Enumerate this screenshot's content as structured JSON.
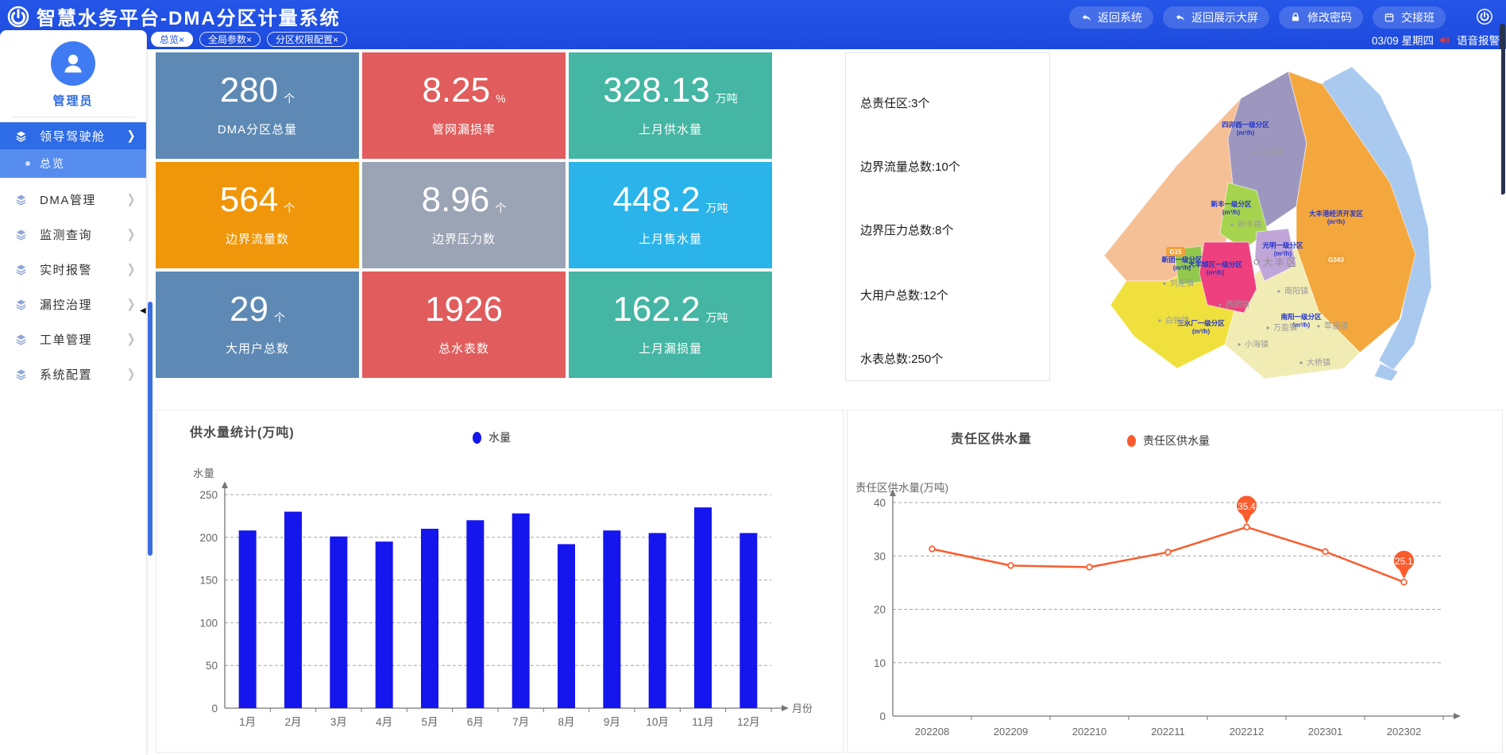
{
  "header": {
    "title": "智慧水务平台-DMA分区计量系统",
    "actions": [
      {
        "label": "返回系统",
        "icon": "back-arrow"
      },
      {
        "label": "返回展示大屏",
        "icon": "back-arrow"
      },
      {
        "label": "修改密码",
        "icon": "lock"
      },
      {
        "label": "交接班",
        "icon": "calendar"
      }
    ],
    "tabs": [
      {
        "label": "总览",
        "close": "×",
        "active": true
      },
      {
        "label": "全局参数",
        "close": "×",
        "active": false
      },
      {
        "label": "分区权限配置",
        "close": "×",
        "active": false
      }
    ],
    "date_text": "03/09 星期四",
    "voice_alarm": "语音报警"
  },
  "sidebar": {
    "user_name": "管理员",
    "menu": [
      {
        "label": "领导驾驶舱",
        "icon": "layers",
        "active": true,
        "expanded": true,
        "children": [
          {
            "label": "总览",
            "active": true
          }
        ]
      },
      {
        "label": "DMA管理",
        "icon": "layers"
      },
      {
        "label": "监测查询",
        "icon": "layers"
      },
      {
        "label": "实时报警",
        "icon": "layers"
      },
      {
        "label": "漏控治理",
        "icon": "layers"
      },
      {
        "label": "工单管理",
        "icon": "layers"
      },
      {
        "label": "系统配置",
        "icon": "layers"
      }
    ]
  },
  "stat_cards": [
    {
      "value": "280",
      "unit": "个",
      "label": "DMA分区总量",
      "color": "#5d89b4"
    },
    {
      "value": "8.25",
      "unit": "%",
      "label": "管网漏损率",
      "color": "#e15c5c"
    },
    {
      "value": "328.13",
      "unit": "万吨",
      "label": "上月供水量",
      "color": "#44b6a3"
    },
    {
      "value": "564",
      "unit": "个",
      "label": "边界流量数",
      "color": "#f0960a"
    },
    {
      "value": "8.96",
      "unit": "个",
      "label": "边界压力数",
      "color": "#9ba4b4"
    },
    {
      "value": "448.2",
      "unit": "万吨",
      "label": "上月售水量",
      "color": "#2ab4e9"
    },
    {
      "value": "29",
      "unit": "个",
      "label": "大用户总数",
      "color": "#5d89b4"
    },
    {
      "value": "1926",
      "unit": "",
      "label": "总水表数",
      "color": "#e15c5c"
    },
    {
      "value": "162.2",
      "unit": "万吨",
      "label": "上月漏损量",
      "color": "#44b6a3"
    }
  ],
  "summary_panel": {
    "items": [
      "总责任区:3个",
      "边界流量总数:10个",
      "边界压力总数:8个",
      "大用户总数:12个",
      "水表总数:250个"
    ]
  },
  "map": {
    "district_label": "大丰区",
    "flow_unit": "(m³/h)",
    "zones": [
      {
        "name": "四卯酉一级分区",
        "color": "#9d97c0"
      },
      {
        "name": "大丰港经济开发区",
        "color": "#f3a73d"
      },
      {
        "name": "新丰一级分区",
        "color": "#a6d44f"
      },
      {
        "name": "光明一级分区",
        "color": "#c0a6d8"
      },
      {
        "name": "新团一级分区",
        "color": "#93c84e"
      },
      {
        "name": "大丰城区一级分区",
        "color": "#ee3f7e"
      },
      {
        "name": "三水厂一级分区",
        "color": "#efe03e"
      },
      {
        "name": "南阳一级分区",
        "color": "#f1ecb4"
      }
    ],
    "towns": [
      "三龙镇",
      "新丰镇",
      "刘庄镇",
      "西团镇",
      "白驹镇",
      "南阳镇",
      "万盈镇",
      "草庙镇",
      "小海镇",
      "大桥镇"
    ],
    "road_labels": [
      "G15",
      "G343"
    ]
  },
  "chart_data": [
    {
      "type": "bar",
      "title": "供水量统计(万吨)",
      "legend": [
        "水量"
      ],
      "ylabel": "水量",
      "xlabel": "月份",
      "categories": [
        "1月",
        "2月",
        "3月",
        "4月",
        "5月",
        "6月",
        "7月",
        "8月",
        "9月",
        "10月",
        "11月",
        "12月"
      ],
      "values": [
        208,
        230,
        201,
        195,
        210,
        220,
        228,
        192,
        208,
        205,
        235,
        205
      ],
      "ylim": [
        0,
        250
      ],
      "ytick_step": 50,
      "grid": "dashed",
      "legend_position": "top-center",
      "color": "#1515ee"
    },
    {
      "type": "line",
      "title": "责任区供水量",
      "legend": [
        "责任区供水量"
      ],
      "ylabel": "责任区供水量(万吨)",
      "xlabel": "",
      "categories": [
        "202208",
        "202209",
        "202210",
        "202211",
        "202212",
        "202301",
        "202302"
      ],
      "values": [
        31.3,
        28.2,
        27.9,
        30.7,
        35.4,
        30.8,
        25.1
      ],
      "ylim": [
        0,
        40
      ],
      "ytick_step": 10,
      "grid": "dashed",
      "legend_position": "top-center",
      "color": "#fb5c2e",
      "point_labels": [
        {
          "index": 4,
          "text": "35.4"
        },
        {
          "index": 6,
          "text": "25.1"
        }
      ]
    }
  ]
}
